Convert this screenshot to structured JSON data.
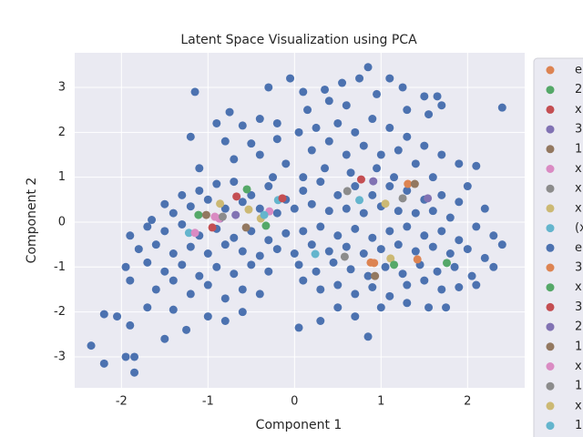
{
  "chart_data": {
    "type": "scatter",
    "title": "Latent Space Visualization using PCA",
    "x_label": "Component 1",
    "y_label": "Component 2",
    "xlim": [
      -2.54,
      2.66
    ],
    "ylim": [
      -3.69,
      3.77
    ],
    "xticks": [
      -2,
      -1,
      0,
      1,
      2
    ],
    "yticks": [
      -3,
      -2,
      -1,
      0,
      1,
      2,
      3
    ],
    "grid": true,
    "legend": "right",
    "series": [
      {
        "name": "e",
        "color": "#dd8452",
        "x": [
          1.31,
          1.42,
          0.92
        ],
        "y": [
          0.85,
          -0.83,
          -0.91
        ]
      },
      {
        "name": "2",
        "color": "#55a868",
        "x": [
          -0.55,
          1.15,
          1.76
        ],
        "y": [
          0.73,
          -0.95,
          -0.91
        ]
      },
      {
        "name": "x",
        "color": "#c44e52",
        "x": [
          -0.67,
          0.77,
          -0.95
        ],
        "y": [
          0.57,
          0.95,
          -0.12
        ]
      },
      {
        "name": "3",
        "color": "#8172b3",
        "x": [
          0.91,
          1.54,
          -0.86
        ],
        "y": [
          0.91,
          0.53,
          0.08
        ]
      },
      {
        "name": "1",
        "color": "#937860",
        "x": [
          -0.56,
          1.39,
          0.93
        ],
        "y": [
          -0.12,
          0.85,
          -1.2
        ]
      },
      {
        "name": "x",
        "color": "#da8bc3",
        "x": [
          -1.15,
          -0.29,
          -0.92
        ],
        "y": [
          -0.24,
          0.24,
          0.12
        ]
      },
      {
        "name": "x",
        "color": "#8c8c8c",
        "x": [
          0.61,
          0.58,
          1.25
        ],
        "y": [
          0.69,
          -0.77,
          0.53
        ]
      },
      {
        "name": "x",
        "color": "#ccb974",
        "x": [
          -0.86,
          -0.53,
          1.05,
          1.11
        ],
        "y": [
          0.41,
          0.28,
          0.41,
          -0.81
        ]
      },
      {
        "name": "(x",
        "color": "#64b5cd",
        "x": [
          -0.19,
          0.24,
          0.75,
          -1.22
        ],
        "y": [
          0.49,
          -0.71,
          0.49,
          -0.24
        ]
      },
      {
        "name": "e",
        "color": "#4c72b0",
        "x": [
          -1.15,
          -0.3,
          -0.05,
          0.1,
          0.35,
          0.55,
          0.75,
          0.85,
          1.1,
          1.25,
          1.5,
          1.65,
          2.4,
          0.95,
          0.4,
          -0.75,
          -0.9,
          -0.6,
          -0.4,
          -0.2,
          0.15,
          0.6,
          1.3,
          1.55,
          1.7,
          -1.2,
          -0.8,
          -0.5,
          -0.2,
          0.05,
          0.25,
          0.5,
          0.7,
          0.9,
          1.1,
          1.3,
          1.5,
          1.7,
          1.9,
          2.1,
          -1.1,
          -0.7,
          -0.4,
          -0.1,
          0.2,
          0.4,
          0.6,
          0.8,
          1.0,
          1.2,
          1.4,
          1.6,
          0.35,
          0.65,
          0.95,
          1.15,
          0.1,
          -0.25,
          -1.5,
          -1.3,
          -1.1,
          -0.9,
          -0.7,
          -0.5,
          -0.3,
          -0.1,
          0.1,
          0.3,
          0.5,
          0.7,
          0.9,
          1.1,
          1.3,
          1.5,
          1.7,
          1.9,
          2.0,
          2.2,
          -1.4,
          -1.2,
          -1.0,
          -0.8,
          -0.6,
          -0.4,
          -0.2,
          0.0,
          0.2,
          0.4,
          0.6,
          0.8,
          1.0,
          1.2,
          1.4,
          1.6,
          1.8,
          -1.65,
          -1.9,
          -1.7,
          -1.5,
          -1.3,
          -1.1,
          -0.9,
          -0.7,
          -0.5,
          -0.3,
          -0.1,
          0.1,
          0.3,
          0.5,
          0.7,
          0.9,
          1.1,
          1.3,
          1.5,
          1.7,
          1.9,
          2.1,
          2.3,
          2.4,
          -1.8,
          -1.6,
          -1.4,
          -1.2,
          -1.0,
          -0.8,
          -0.6,
          -0.4,
          -0.2,
          0.0,
          0.2,
          0.4,
          0.6,
          0.8,
          1.0,
          1.2,
          1.4,
          1.6,
          1.8,
          2.0,
          2.2,
          -1.95,
          -1.7,
          -1.5,
          -1.3,
          -1.1,
          -0.9,
          -0.7,
          -0.5,
          -0.3,
          0.05,
          0.25,
          0.45,
          0.65,
          0.85,
          1.05,
          1.25,
          1.45,
          1.65,
          1.85,
          2.05,
          2.3,
          -1.9,
          -1.6,
          -1.4,
          -1.2,
          -1.0,
          -0.8,
          -0.6,
          -0.4,
          0.1,
          0.3,
          0.5,
          0.7,
          0.9,
          1.1,
          1.3,
          1.5,
          1.7,
          1.9,
          2.1,
          -1.9,
          -2.2,
          -2.05,
          -1.5,
          -1.25,
          -1.0,
          -0.8,
          -0.6,
          -1.7,
          -1.4,
          0.05,
          0.3,
          0.5,
          0.7,
          0.85,
          1.0,
          1.3,
          -2.35,
          -2.2,
          -1.95,
          -1.85,
          -1.85,
          1.55,
          1.75
        ],
        "y": [
          2.9,
          3.0,
          3.2,
          2.9,
          2.95,
          3.1,
          3.2,
          3.45,
          3.2,
          3.0,
          2.8,
          2.8,
          2.55,
          2.85,
          2.7,
          2.45,
          2.2,
          2.15,
          2.3,
          2.2,
          2.5,
          2.6,
          2.5,
          2.4,
          2.6,
          1.9,
          1.8,
          1.75,
          1.85,
          2.0,
          2.1,
          2.2,
          2.0,
          2.3,
          2.1,
          1.9,
          1.7,
          1.5,
          1.3,
          1.25,
          1.2,
          1.4,
          1.5,
          1.3,
          1.6,
          1.8,
          1.5,
          1.7,
          1.5,
          1.6,
          1.3,
          1.0,
          1.2,
          1.1,
          1.2,
          1.0,
          1.0,
          1.0,
          0.4,
          0.6,
          0.7,
          0.85,
          0.9,
          0.6,
          0.8,
          0.5,
          0.7,
          0.9,
          0.6,
          0.8,
          0.6,
          0.8,
          0.7,
          0.5,
          0.6,
          0.45,
          0.8,
          0.3,
          0.2,
          0.35,
          0.5,
          0.3,
          0.45,
          0.3,
          0.2,
          0.3,
          0.4,
          0.25,
          0.3,
          0.2,
          0.35,
          0.25,
          0.2,
          0.25,
          0.1,
          0.05,
          -0.3,
          -0.1,
          -0.2,
          -0.05,
          -0.3,
          -0.15,
          -0.35,
          -0.2,
          -0.4,
          -0.25,
          -0.2,
          -0.1,
          -0.3,
          -0.15,
          -0.35,
          -0.2,
          -0.1,
          -0.3,
          -0.2,
          -0.4,
          -0.1,
          -0.3,
          -0.5,
          -0.6,
          -0.5,
          -0.7,
          -0.55,
          -0.7,
          -0.5,
          -0.65,
          -0.75,
          -0.6,
          -0.7,
          -0.5,
          -0.65,
          -0.55,
          -0.7,
          -0.6,
          -0.5,
          -0.65,
          -0.55,
          -0.7,
          -0.6,
          -0.8,
          -1.0,
          -0.9,
          -1.1,
          -0.95,
          -1.2,
          -1.0,
          -1.15,
          -0.95,
          -1.1,
          -0.95,
          -1.1,
          -0.9,
          -1.05,
          -1.2,
          -1.0,
          -1.15,
          -0.95,
          -1.1,
          -1.0,
          -1.2,
          -1.0,
          -1.3,
          -1.5,
          -1.3,
          -1.6,
          -1.4,
          -1.7,
          -1.5,
          -1.6,
          -1.3,
          -1.5,
          -1.4,
          -1.6,
          -1.45,
          -1.65,
          -1.4,
          -1.3,
          -1.5,
          -1.45,
          -1.4,
          -2.3,
          -2.05,
          -2.1,
          -2.6,
          -2.4,
          -2.1,
          -2.2,
          -2.0,
          -1.9,
          -1.95,
          -2.35,
          -2.2,
          -1.9,
          -2.1,
          -2.55,
          -1.9,
          -1.8,
          -2.75,
          -3.15,
          -3.0,
          -3.35,
          -3.0,
          -1.9,
          -1.9
        ]
      },
      {
        "name": "3",
        "color": "#dd8452",
        "x": [
          0.88
        ],
        "y": [
          -0.9
        ]
      },
      {
        "name": "x",
        "color": "#55a868",
        "x": [
          -1.11,
          -0.33
        ],
        "y": [
          0.16,
          -0.08
        ]
      },
      {
        "name": "3",
        "color": "#c44e52",
        "x": [
          -0.14
        ],
        "y": [
          0.53
        ]
      },
      {
        "name": "2",
        "color": "#8172b3",
        "x": [
          -0.68
        ],
        "y": [
          0.16
        ]
      },
      {
        "name": "1",
        "color": "#937860",
        "x": [
          -1.02
        ],
        "y": [
          0.16
        ]
      },
      {
        "name": "x",
        "color": "#da8bc3",
        "x": [
          -0.87
        ],
        "y": [
          0.08
        ]
      },
      {
        "name": "1",
        "color": "#8c8c8c",
        "x": [
          -0.83
        ],
        "y": [
          0.12
        ]
      },
      {
        "name": "x",
        "color": "#ccb974",
        "x": [
          -0.39
        ],
        "y": [
          0.08
        ]
      },
      {
        "name": "1",
        "color": "#64b5cd",
        "x": [
          -0.35
        ],
        "y": [
          0.16
        ]
      }
    ]
  }
}
